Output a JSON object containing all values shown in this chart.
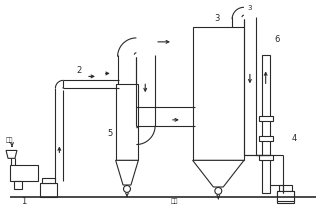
{
  "bg_color": "#ffffff",
  "lc": "#2a2a2a",
  "lw": 0.8,
  "labels": {
    "feed": "进料",
    "output": "出料",
    "n1": "1",
    "n2": "2",
    "n3": "3",
    "n4": "4",
    "n5": "5",
    "n6": "6"
  },
  "figsize": [
    3.29,
    2.16
  ],
  "dpi": 100
}
